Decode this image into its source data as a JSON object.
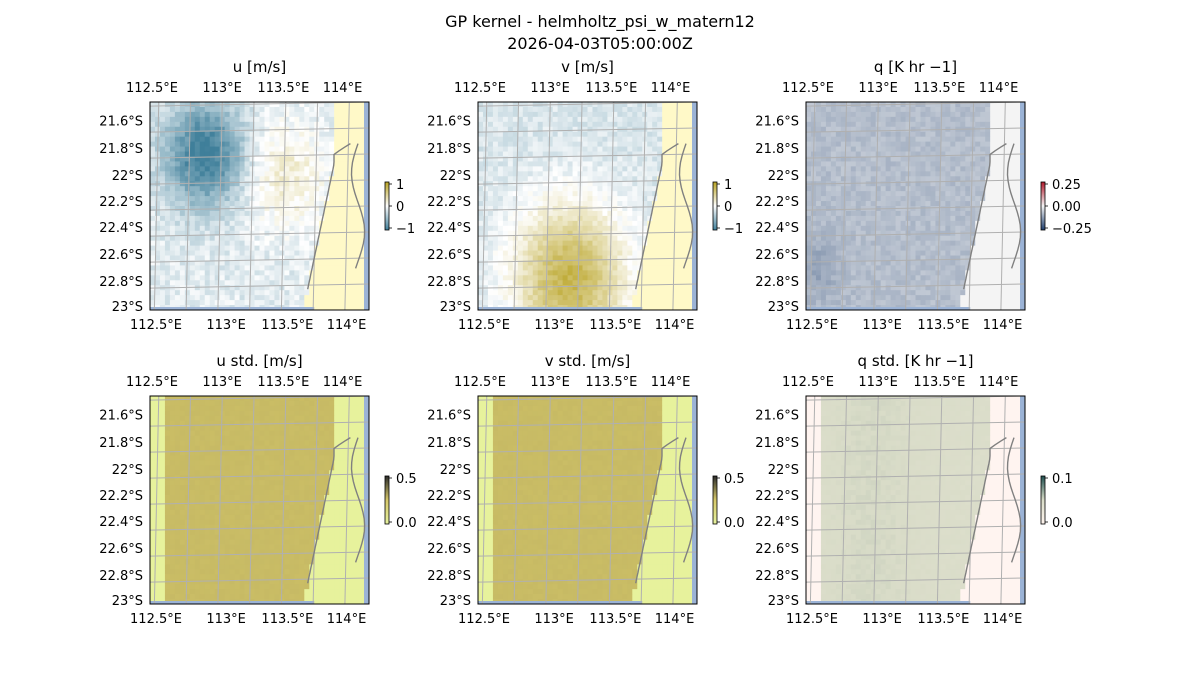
{
  "figure": {
    "title_line1": "GP kernel - helmholtz_psi_w_matern12",
    "title_line2": "2026-04-03T05:00:00Z"
  },
  "chart_data": [
    {
      "type": "heatmap",
      "title": "u [m/s]",
      "lon_ticks": [
        "112.5°E",
        "113°E",
        "113.5°E",
        "114°E"
      ],
      "lat_ticks": [
        "21.6°S",
        "21.8°S",
        "22°S",
        "22.2°S",
        "22.4°S",
        "22.6°S",
        "22.8°S",
        "23°S"
      ],
      "colorbar": {
        "ticks": [
          "1",
          "0",
          "−1"
        ],
        "range": [
          -1,
          1
        ],
        "colors": [
          "#3f7f9a",
          "#ffffff",
          "#b8a222"
        ]
      },
      "field": "u_mean",
      "scale": [
        -1,
        1
      ]
    },
    {
      "type": "heatmap",
      "title": "v [m/s]",
      "lon_ticks": [
        "112.5°E",
        "113°E",
        "113.5°E",
        "114°E"
      ],
      "lat_ticks": [
        "21.6°S",
        "21.8°S",
        "22°S",
        "22.2°S",
        "22.4°S",
        "22.6°S",
        "22.8°S",
        "23°S"
      ],
      "colorbar": {
        "ticks": [
          "1",
          "0",
          "−1"
        ],
        "range": [
          -1,
          1
        ],
        "colors": [
          "#3f7f9a",
          "#ffffff",
          "#b8a222"
        ]
      },
      "field": "v_mean",
      "scale": [
        -1,
        1
      ]
    },
    {
      "type": "heatmap",
      "title": "q [K hr −1]",
      "lon_ticks": [
        "112.5°E",
        "113°E",
        "113.5°E",
        "114°E"
      ],
      "lat_ticks": [
        "21.6°S",
        "21.8°S",
        "22°S",
        "22.2°S",
        "22.4°S",
        "22.6°S",
        "22.8°S",
        "23°S"
      ],
      "colorbar": {
        "ticks": [
          "0.25",
          "0.00",
          "−0.25"
        ],
        "range": [
          -0.4,
          0.4
        ],
        "colors": [
          "#1f3f6f",
          "#f4f4f4",
          "#b2182b"
        ]
      },
      "field": "q_mean",
      "scale": [
        -0.4,
        0.4
      ]
    },
    {
      "type": "heatmap",
      "title": "u std. [m/s]",
      "lon_ticks": [
        "112.5°E",
        "113°E",
        "113.5°E",
        "114°E"
      ],
      "lat_ticks": [
        "21.6°S",
        "21.8°S",
        "22°S",
        "22.2°S",
        "22.4°S",
        "22.6°S",
        "22.8°S",
        "23°S"
      ],
      "colorbar": {
        "ticks": [
          "0.5",
          "0.0"
        ],
        "range": [
          0,
          0.6
        ],
        "colors": [
          "#e6f2a0",
          "#d6c86a",
          "#2b2b2b"
        ]
      },
      "field": "u_std",
      "scale": [
        0,
        0.6
      ]
    },
    {
      "type": "heatmap",
      "title": "v std. [m/s]",
      "lon_ticks": [
        "112.5°E",
        "113°E",
        "113.5°E",
        "114°E"
      ],
      "lat_ticks": [
        "21.6°S",
        "21.8°S",
        "22°S",
        "22.2°S",
        "22.4°S",
        "22.6°S",
        "22.8°S",
        "23°S"
      ],
      "colorbar": {
        "ticks": [
          "0.5",
          "0.0"
        ],
        "range": [
          0,
          0.6
        ],
        "colors": [
          "#e6f2a0",
          "#d6c86a",
          "#2b2b2b"
        ]
      },
      "field": "v_std",
      "scale": [
        0,
        0.6
      ]
    },
    {
      "type": "heatmap",
      "title": "q std. [K hr −1]",
      "lon_ticks": [
        "112.5°E",
        "113°E",
        "113.5°E",
        "114°E"
      ],
      "lat_ticks": [
        "21.6°S",
        "21.8°S",
        "22°S",
        "22.2°S",
        "22.4°S",
        "22.6°S",
        "22.8°S",
        "23°S"
      ],
      "colorbar": {
        "ticks": [
          "0.1",
          "0.0"
        ],
        "range": [
          0,
          0.12
        ],
        "colors": [
          "#fff4ef",
          "#d9dcc8",
          "#1f4f4f"
        ]
      },
      "field": "q_std",
      "scale": [
        0,
        0.12
      ]
    }
  ],
  "colors": {
    "land_ocean_edge": "#9bb3d6",
    "gridline": "#b0b0b0",
    "coastline": "#808080"
  }
}
